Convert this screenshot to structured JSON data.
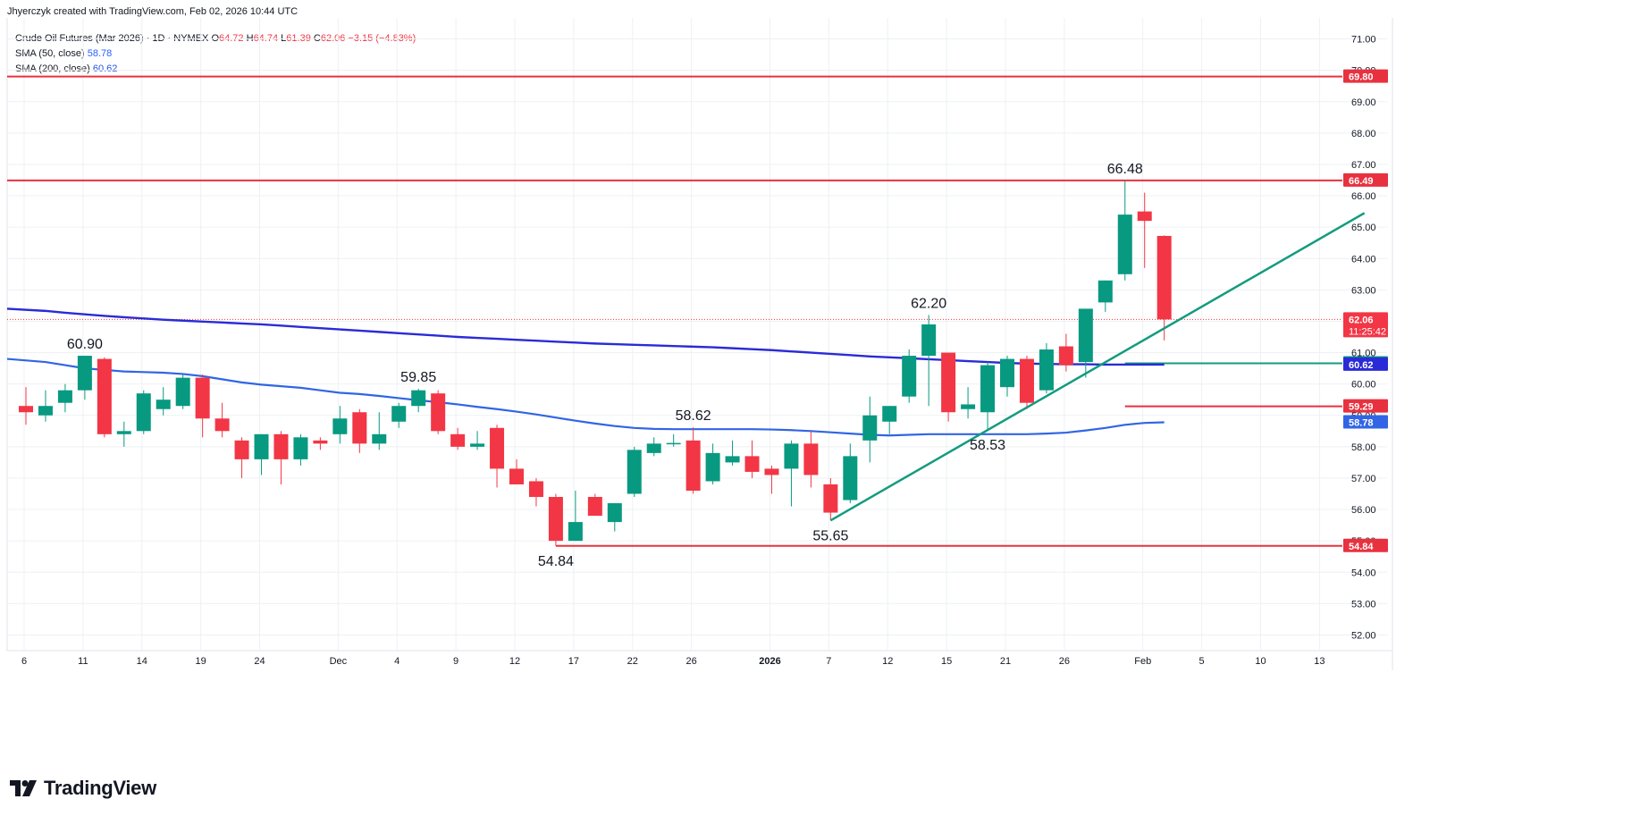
{
  "header": {
    "credit": "Jhyerczyk created with TradingView.com, Feb 02, 2026 10:44 UTC"
  },
  "legend": {
    "symbol": "Crude Oil Futures (Mar 2026) · 1D · NYMEX",
    "o_label": "O",
    "o_value": "64.72",
    "h_label": "H",
    "h_value": "64.74",
    "l_label": "L",
    "l_value": "61.39",
    "c_label": "C",
    "c_value": "62.06",
    "change": "−3.15 (−4.83%)",
    "sma50_label": "SMA (50, close)",
    "sma50_value": "58.78",
    "sma200_label": "SMA (200, close)",
    "sma200_value": "60.62"
  },
  "brand": {
    "name": "TradingView",
    "logo_icon": "tradingview-logo-icon"
  },
  "colors": {
    "up": "#089981",
    "down": "#f23645",
    "sma200": "#2a2bd6",
    "sma50": "#3165e5",
    "trendline": "#139b7f",
    "hline": "#e8313f",
    "grid": "#eef0f3",
    "axis_text": "#131722"
  },
  "chart_data": {
    "type": "candlestick",
    "title": "Crude Oil Futures (Mar 2026)",
    "y_range": [
      51.5,
      71.5
    ],
    "y_ticks": [
      "52.00",
      "53.00",
      "54.00",
      "55.00",
      "56.00",
      "57.00",
      "58.00",
      "59.00",
      "60.00",
      "61.00",
      "62.00",
      "63.00",
      "64.00",
      "65.00",
      "66.00",
      "67.00",
      "68.00",
      "69.00",
      "70.00",
      "71.00"
    ],
    "x_ticks": [
      "6",
      "11",
      "14",
      "19",
      "24",
      "Dec",
      "4",
      "9",
      "12",
      "17",
      "22",
      "26",
      "2026",
      "7",
      "12",
      "15",
      "21",
      "26",
      "Feb",
      "5",
      "10",
      "13"
    ],
    "x_ticks_bold": [
      "2026"
    ],
    "x_tick_slots": [
      0,
      3,
      6,
      9,
      12,
      16,
      19,
      22,
      25,
      28,
      31,
      34,
      38,
      41,
      44,
      47,
      50,
      53,
      57,
      60,
      63,
      66
    ],
    "candles": [
      {
        "o": 59.3,
        "h": 59.9,
        "l": 58.7,
        "c": 59.1
      },
      {
        "o": 59.0,
        "h": 59.8,
        "l": 58.8,
        "c": 59.3
      },
      {
        "o": 59.4,
        "h": 60.0,
        "l": 59.1,
        "c": 59.8
      },
      {
        "o": 59.8,
        "h": 60.9,
        "l": 59.5,
        "c": 60.9
      },
      {
        "o": 60.8,
        "h": 60.85,
        "l": 58.3,
        "c": 58.4
      },
      {
        "o": 58.4,
        "h": 58.8,
        "l": 58.0,
        "c": 58.5
      },
      {
        "o": 58.5,
        "h": 59.8,
        "l": 58.4,
        "c": 59.7
      },
      {
        "o": 59.2,
        "h": 59.9,
        "l": 59.0,
        "c": 59.5
      },
      {
        "o": 59.3,
        "h": 60.3,
        "l": 59.2,
        "c": 60.2
      },
      {
        "o": 60.2,
        "h": 60.3,
        "l": 58.3,
        "c": 58.9
      },
      {
        "o": 58.9,
        "h": 59.4,
        "l": 58.3,
        "c": 58.5
      },
      {
        "o": 58.2,
        "h": 58.3,
        "l": 57.0,
        "c": 57.6
      },
      {
        "o": 57.6,
        "h": 58.4,
        "l": 57.1,
        "c": 58.4
      },
      {
        "o": 58.4,
        "h": 58.5,
        "l": 56.8,
        "c": 57.6
      },
      {
        "o": 57.6,
        "h": 58.4,
        "l": 57.4,
        "c": 58.3
      },
      {
        "o": 58.2,
        "h": 58.3,
        "l": 57.9,
        "c": 58.1
      },
      {
        "o": 58.4,
        "h": 59.3,
        "l": 58.1,
        "c": 58.9
      },
      {
        "o": 59.1,
        "h": 59.2,
        "l": 57.8,
        "c": 58.1
      },
      {
        "o": 58.1,
        "h": 59.1,
        "l": 57.9,
        "c": 58.4
      },
      {
        "o": 58.8,
        "h": 59.4,
        "l": 58.6,
        "c": 59.3
      },
      {
        "o": 59.3,
        "h": 59.85,
        "l": 59.1,
        "c": 59.8
      },
      {
        "o": 59.7,
        "h": 59.8,
        "l": 58.4,
        "c": 58.5
      },
      {
        "o": 58.4,
        "h": 58.6,
        "l": 57.9,
        "c": 58.0
      },
      {
        "o": 58.0,
        "h": 58.5,
        "l": 57.9,
        "c": 58.1
      },
      {
        "o": 58.6,
        "h": 58.7,
        "l": 56.7,
        "c": 57.3
      },
      {
        "o": 57.3,
        "h": 57.6,
        "l": 56.8,
        "c": 56.8
      },
      {
        "o": 56.9,
        "h": 57.0,
        "l": 56.1,
        "c": 56.4
      },
      {
        "o": 56.4,
        "h": 56.5,
        "l": 54.84,
        "c": 55.0
      },
      {
        "o": 55.0,
        "h": 56.6,
        "l": 55.0,
        "c": 55.6
      },
      {
        "o": 56.4,
        "h": 56.5,
        "l": 55.8,
        "c": 55.8
      },
      {
        "o": 55.6,
        "h": 56.2,
        "l": 55.3,
        "c": 56.2
      },
      {
        "o": 56.5,
        "h": 58.0,
        "l": 56.4,
        "c": 57.9
      },
      {
        "o": 57.8,
        "h": 58.3,
        "l": 57.7,
        "c": 58.1
      },
      {
        "o": 58.1,
        "h": 58.4,
        "l": 58.0,
        "c": 58.12
      },
      {
        "o": 58.2,
        "h": 58.62,
        "l": 56.5,
        "c": 56.6
      },
      {
        "o": 56.9,
        "h": 58.1,
        "l": 56.8,
        "c": 57.8
      },
      {
        "o": 57.5,
        "h": 58.2,
        "l": 57.4,
        "c": 57.7
      },
      {
        "o": 57.7,
        "h": 58.2,
        "l": 57.0,
        "c": 57.2
      },
      {
        "o": 57.3,
        "h": 57.4,
        "l": 56.5,
        "c": 57.1
      },
      {
        "o": 57.3,
        "h": 58.2,
        "l": 56.1,
        "c": 58.1
      },
      {
        "o": 58.1,
        "h": 58.5,
        "l": 56.7,
        "c": 57.1
      },
      {
        "o": 56.8,
        "h": 57.0,
        "l": 55.65,
        "c": 55.9
      },
      {
        "o": 56.3,
        "h": 58.1,
        "l": 56.2,
        "c": 57.7
      },
      {
        "o": 58.2,
        "h": 59.6,
        "l": 57.5,
        "c": 59.0
      },
      {
        "o": 58.8,
        "h": 59.3,
        "l": 58.4,
        "c": 59.3
      },
      {
        "o": 59.6,
        "h": 61.1,
        "l": 59.4,
        "c": 60.9
      },
      {
        "o": 60.9,
        "h": 62.2,
        "l": 59.3,
        "c": 61.9
      },
      {
        "o": 61.0,
        "h": 61.0,
        "l": 58.8,
        "c": 59.1
      },
      {
        "o": 59.2,
        "h": 59.9,
        "l": 58.9,
        "c": 59.35
      },
      {
        "o": 59.1,
        "h": 60.7,
        "l": 58.53,
        "c": 60.6
      },
      {
        "o": 59.9,
        "h": 60.9,
        "l": 59.6,
        "c": 60.8
      },
      {
        "o": 60.8,
        "h": 60.9,
        "l": 59.2,
        "c": 59.4
      },
      {
        "o": 59.8,
        "h": 61.3,
        "l": 59.7,
        "c": 61.1
      },
      {
        "o": 61.2,
        "h": 61.6,
        "l": 60.4,
        "c": 60.6
      },
      {
        "o": 60.7,
        "h": 62.3,
        "l": 60.2,
        "c": 62.4
      },
      {
        "o": 62.6,
        "h": 63.3,
        "l": 62.3,
        "c": 63.3
      },
      {
        "o": 63.5,
        "h": 66.48,
        "l": 63.3,
        "c": 65.4
      },
      {
        "o": 65.5,
        "h": 66.1,
        "l": 63.7,
        "c": 65.2
      },
      {
        "o": 64.72,
        "h": 64.74,
        "l": 61.39,
        "c": 62.06
      }
    ],
    "sma200": [
      62.4,
      62.33,
      62.27,
      62.22,
      62.17,
      62.13,
      62.09,
      62.05,
      62.02,
      61.99,
      61.96,
      61.93,
      61.9,
      61.86,
      61.82,
      61.78,
      61.74,
      61.7,
      61.66,
      61.62,
      61.58,
      61.54,
      61.5,
      61.47,
      61.44,
      61.41,
      61.38,
      61.35,
      61.32,
      61.29,
      61.27,
      61.25,
      61.23,
      61.21,
      61.19,
      61.17,
      61.14,
      61.11,
      61.08,
      61.04,
      61.0,
      60.96,
      60.92,
      60.88,
      60.85,
      60.82,
      60.79,
      60.76,
      60.73,
      60.7,
      60.67,
      60.65,
      60.64,
      60.63,
      60.63,
      60.62,
      60.62,
      60.62,
      60.62
    ],
    "sma50": [
      60.8,
      60.7,
      60.6,
      60.5,
      60.45,
      60.4,
      60.38,
      60.36,
      60.32,
      60.25,
      60.15,
      60.05,
      59.98,
      59.93,
      59.88,
      59.8,
      59.72,
      59.68,
      59.62,
      59.55,
      59.48,
      59.42,
      59.35,
      59.27,
      59.2,
      59.12,
      59.03,
      58.93,
      58.83,
      58.74,
      58.66,
      58.6,
      58.57,
      58.56,
      58.56,
      58.56,
      58.56,
      58.56,
      58.55,
      58.53,
      58.5,
      58.46,
      58.42,
      58.38,
      58.36,
      58.38,
      58.4,
      58.4,
      58.4,
      58.4,
      58.4,
      58.4,
      58.42,
      58.45,
      58.52,
      58.6,
      58.7,
      58.76,
      58.78
    ],
    "trendline": {
      "from": {
        "slot": 41,
        "value": 55.65
      },
      "to": {
        "slot": 68.2,
        "value": 65.45
      }
    },
    "horizontal_levels": [
      {
        "value": 69.8,
        "label": "69.80"
      },
      {
        "value": 66.49,
        "label": "66.49"
      },
      {
        "value": 54.84,
        "label": "54.84",
        "from_slot": 27
      }
    ],
    "short_levels": [
      {
        "value": 60.66,
        "color": "#139b7f",
        "from_slot": 56
      },
      {
        "value": 59.29,
        "color": "#e8313f",
        "from_slot": 56
      }
    ],
    "price_tags": [
      {
        "value": 69.8,
        "label": "69.80",
        "color": "#e8313f"
      },
      {
        "value": 66.49,
        "label": "66.49",
        "color": "#e8313f"
      },
      {
        "value": 62.06,
        "label": "62.06",
        "sublabel": "11:25:42",
        "color": "#f23645"
      },
      {
        "value": 60.66,
        "label": "60.66",
        "color": "#089981"
      },
      {
        "value": 60.62,
        "label": "60.62",
        "color": "#2a2bd6"
      },
      {
        "value": 59.29,
        "label": "59.29",
        "color": "#e8313f"
      },
      {
        "value": 58.78,
        "label": "58.78",
        "color": "#3165e5"
      },
      {
        "value": 54.84,
        "label": "54.84",
        "color": "#e8313f"
      }
    ],
    "last_price": 62.06,
    "annotations": [
      {
        "text": "60.90",
        "slot": 3,
        "value": 60.9,
        "pos": "above"
      },
      {
        "text": "59.85",
        "slot": 20,
        "value": 59.85,
        "pos": "above"
      },
      {
        "text": "54.84",
        "slot": 27,
        "value": 54.84,
        "pos": "below"
      },
      {
        "text": "58.62",
        "slot": 34,
        "value": 58.62,
        "pos": "above"
      },
      {
        "text": "55.65",
        "slot": 41,
        "value": 55.65,
        "pos": "below"
      },
      {
        "text": "62.20",
        "slot": 46,
        "value": 62.2,
        "pos": "above"
      },
      {
        "text": "58.53",
        "slot": 49,
        "value": 58.53,
        "pos": "below"
      },
      {
        "text": "66.48",
        "slot": 56,
        "value": 66.48,
        "pos": "above"
      }
    ]
  }
}
